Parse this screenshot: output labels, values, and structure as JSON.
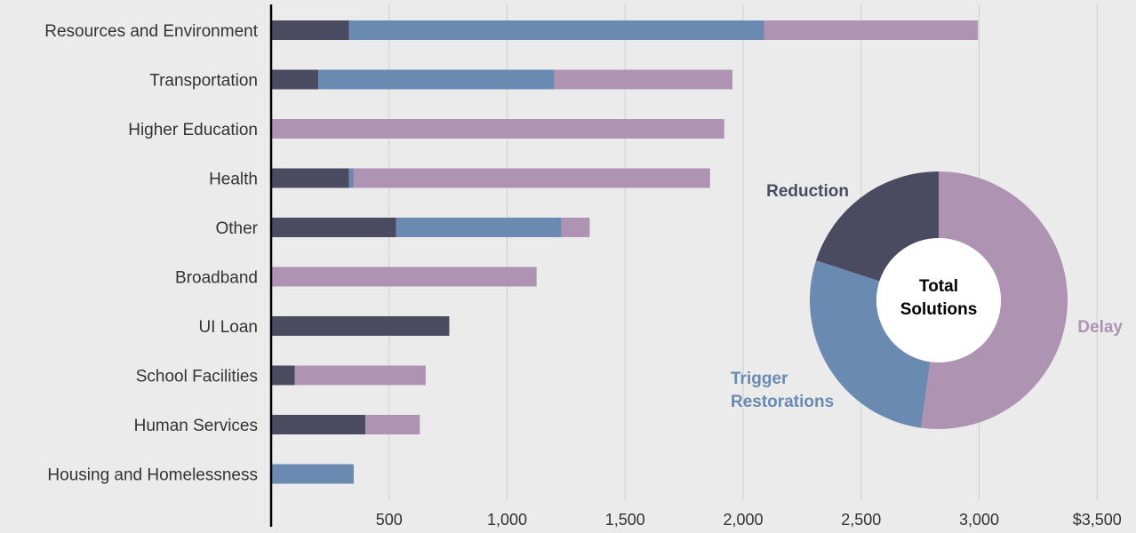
{
  "colors": {
    "background": "#ebebeb",
    "reduction": "#4a4b61",
    "trigger": "#6a8ab2",
    "delay": "#ae93b3",
    "gridline": "#cfcfcf",
    "axis": "#000000",
    "text": "#333333"
  },
  "chart_data": [
    {
      "type": "bar",
      "orientation": "horizontal",
      "stacked": true,
      "categories": [
        "Resources and Environment",
        "Transportation",
        "Higher Education",
        "Health",
        "Other",
        "Broadband",
        "UI Loan",
        "School Facilities",
        "Human Services",
        "Housing and Homelessness"
      ],
      "series": [
        {
          "name": "Reduction",
          "values": [
            330,
            200,
            0,
            330,
            530,
            0,
            755,
            100,
            400,
            0
          ]
        },
        {
          "name": "Trigger Restorations",
          "values": [
            1760,
            1000,
            0,
            20,
            700,
            0,
            0,
            0,
            0,
            350
          ]
        },
        {
          "name": "Delay",
          "values": [
            905,
            755,
            1920,
            1510,
            120,
            1125,
            0,
            555,
            230,
            0
          ]
        }
      ],
      "xlim": [
        0,
        3500
      ],
      "xticks": [
        500,
        1000,
        1500,
        2000,
        2500,
        3000,
        3500
      ],
      "xtick_labels": [
        "500",
        "1,000",
        "1,500",
        "2,000",
        "2,500",
        "3,000",
        "$3,500"
      ],
      "grid": "vertical",
      "title": "",
      "xlabel": "",
      "ylabel": ""
    },
    {
      "type": "pie",
      "donut": true,
      "center_label": [
        "Total",
        "Solutions"
      ],
      "labels": [
        "Delay",
        "Trigger Restorations",
        "Reduction"
      ],
      "label_lines": [
        [
          "Delay"
        ],
        [
          "Trigger",
          "Restorations"
        ],
        [
          "Reduction"
        ]
      ],
      "values": [
        52.2,
        27.8,
        20.0
      ]
    }
  ]
}
